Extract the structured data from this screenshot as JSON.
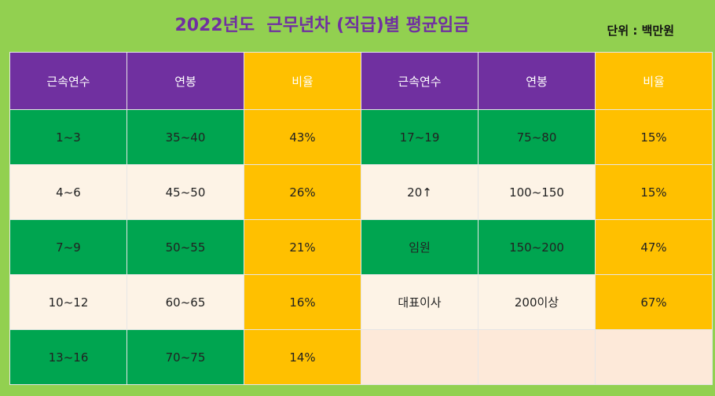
{
  "title": "2022년도  근무년차 (직급)별 평균임금",
  "unit": "단위 : 백만원",
  "headers": [
    "근속연수",
    "연봉",
    "비율",
    "근속연수",
    "연봉",
    "비율"
  ],
  "rows": [
    {
      "left": [
        "1~3",
        "35~40",
        "43%"
      ],
      "right": [
        "17~19",
        "75~80",
        "15%"
      ]
    },
    {
      "left": [
        "4~6",
        "45~50",
        "26%"
      ],
      "right": [
        "20↑",
        "100~150",
        "15%"
      ]
    },
    {
      "left": [
        "7~9",
        "50~55",
        "21%"
      ],
      "right": [
        "임원",
        "150~200",
        "47%"
      ]
    },
    {
      "left": [
        "10~12",
        "60~65",
        "16%"
      ],
      "right": [
        "대표이사",
        "200이상",
        "67%"
      ]
    },
    {
      "left": [
        "13~16",
        "70~75",
        "14%"
      ],
      "right": [
        "",
        "",
        ""
      ]
    }
  ],
  "colors": {
    "background": "#92d050",
    "header_purple": "#7030a0",
    "header_gold": "#ffc000",
    "row_green": "#00a550",
    "row_cream": "#fdf3e6",
    "empty_cell": "#fde9d9"
  }
}
